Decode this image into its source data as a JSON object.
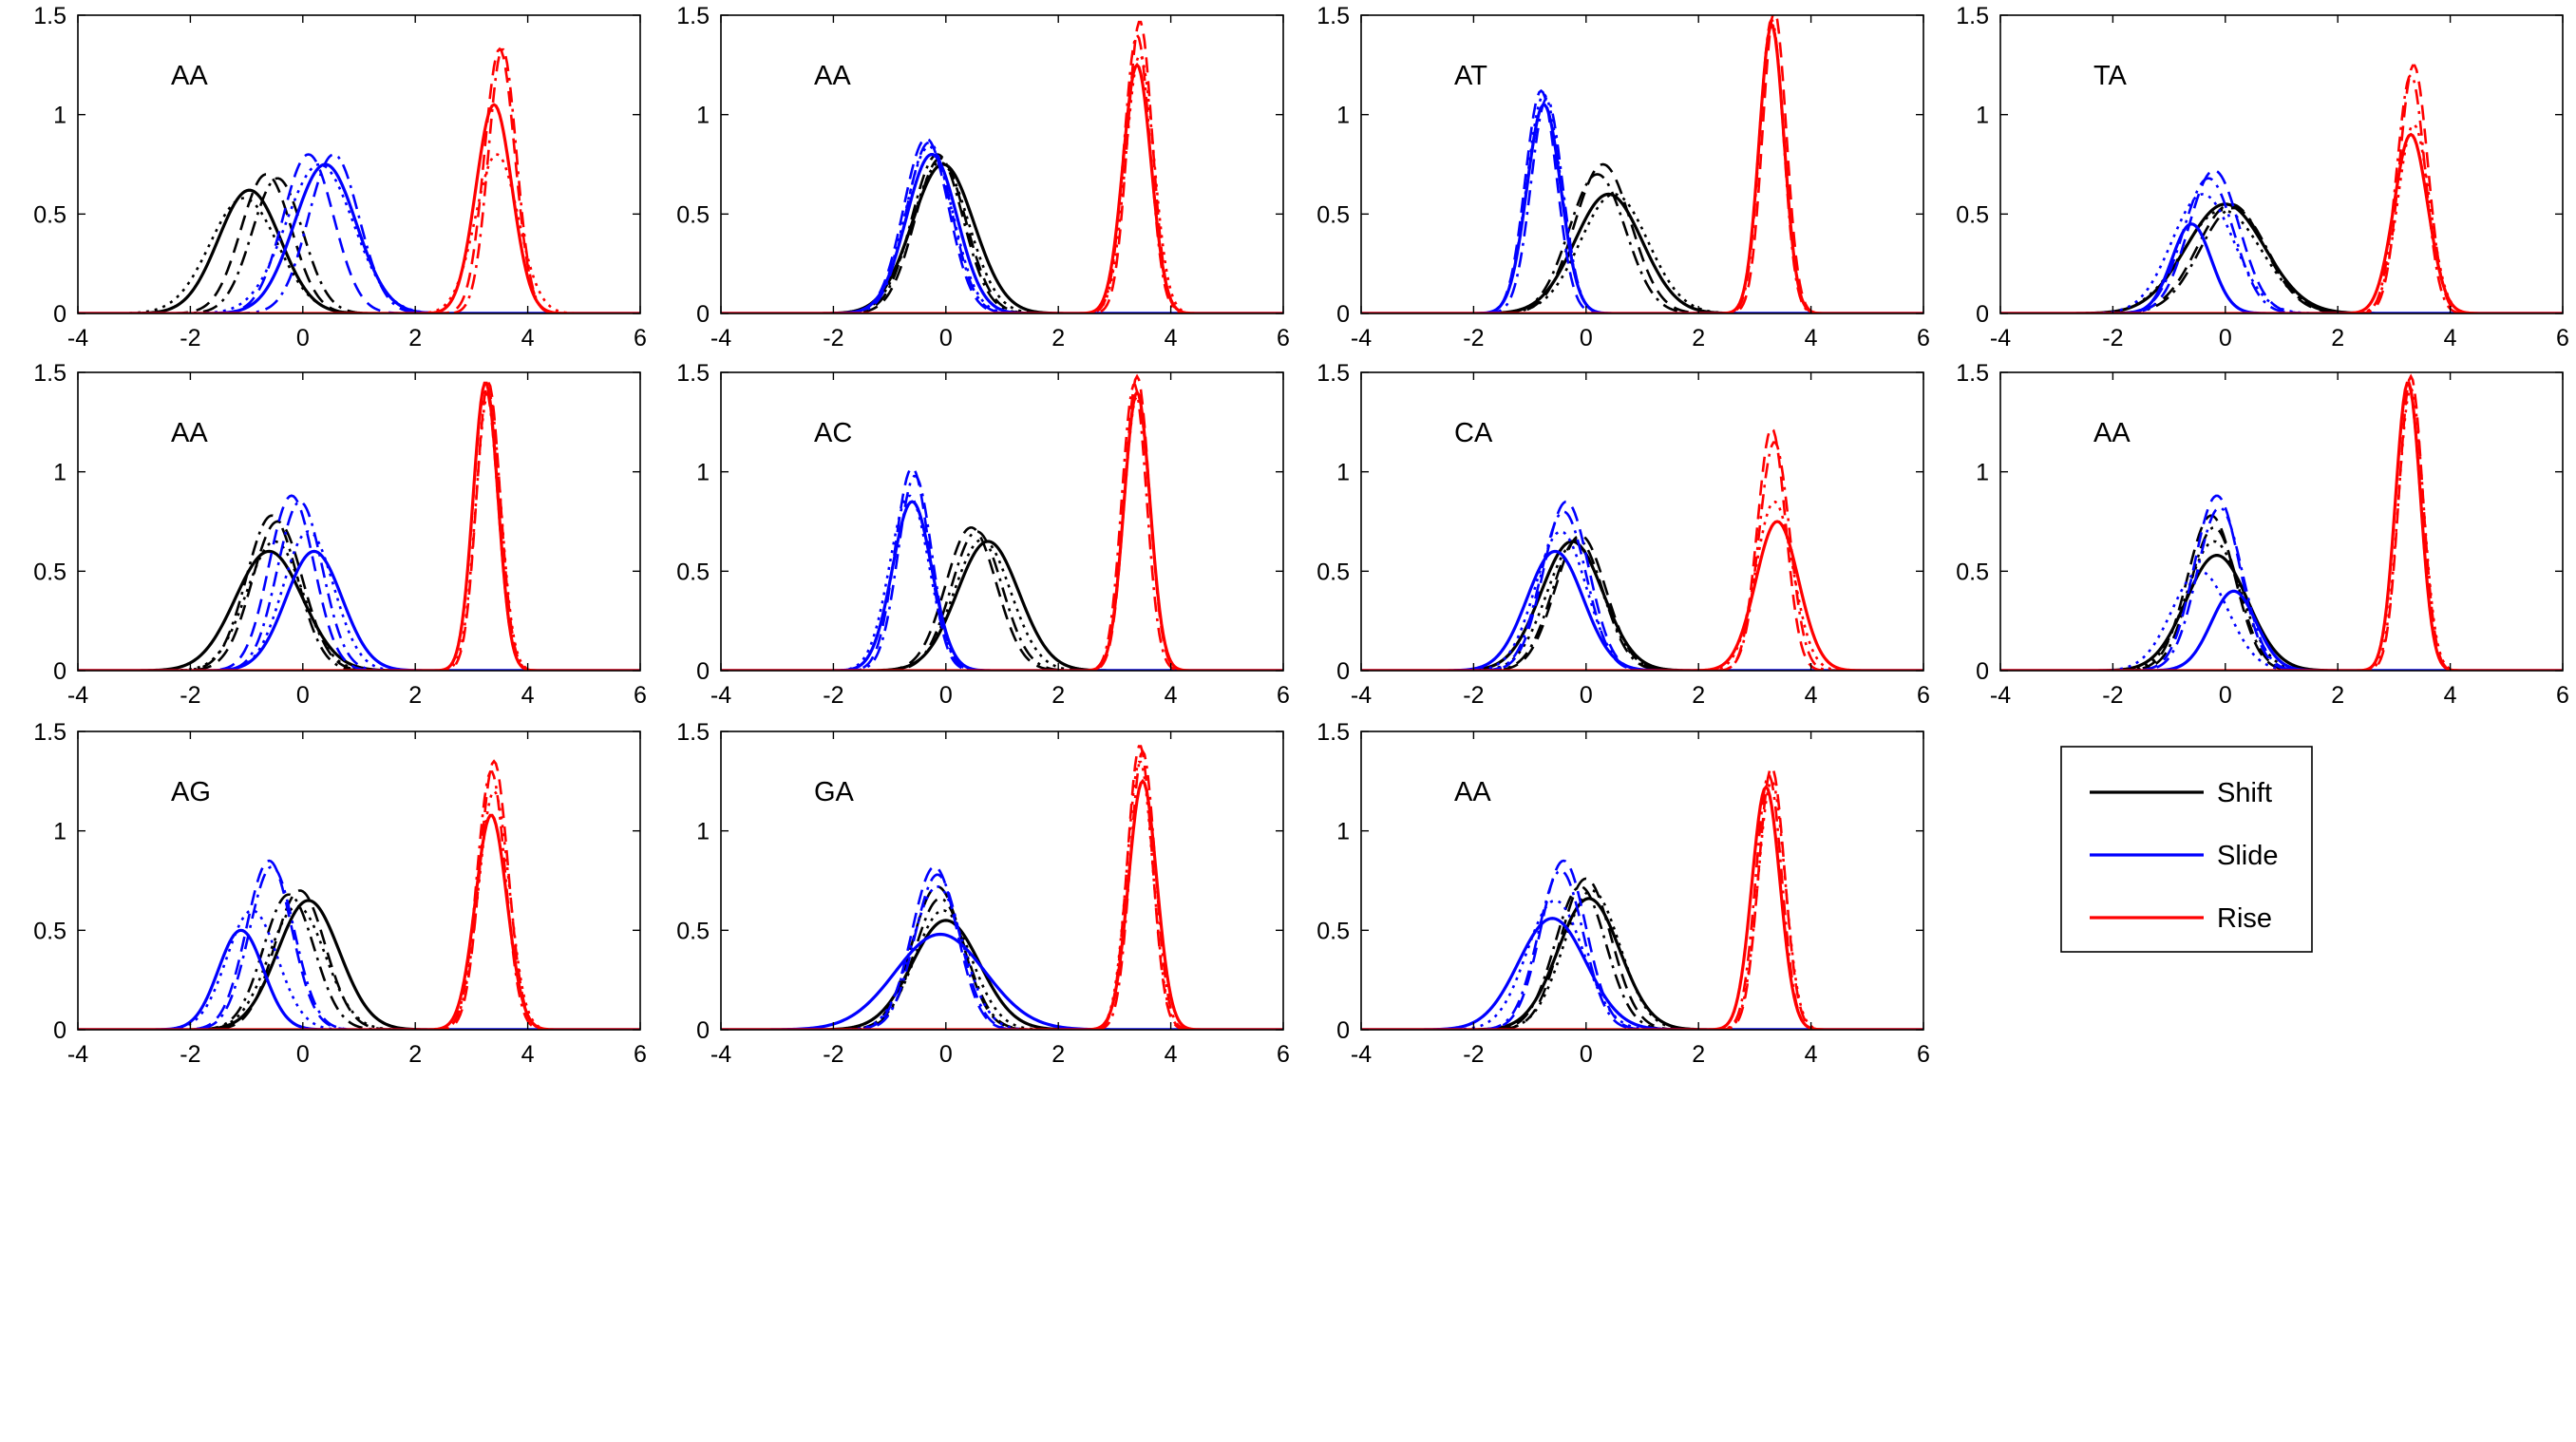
{
  "chart_data": {
    "type": "line",
    "description_of_layout": "grid-4x3",
    "xlim": [
      -4,
      6
    ],
    "ylim": [
      0,
      1.5
    ],
    "x_ticks": [
      -4,
      -2,
      0,
      2,
      4,
      6
    ],
    "y_ticks": [
      0,
      0.5,
      1,
      1.5
    ],
    "x_tick_labels": [
      "-4",
      "-2",
      "0",
      "2",
      "4",
      "6"
    ],
    "y_tick_labels": [
      "0",
      "0.5",
      "1",
      "1.5"
    ],
    "grid": false,
    "colors": {
      "Shift": "#000000",
      "Slide": "#0000ff",
      "Rise": "#ff0000"
    },
    "variant_line_styles": [
      "solid",
      "dashed",
      "dashdot",
      "dotted"
    ],
    "legend": {
      "placement": "grid-row-3-col-4",
      "entries": [
        {
          "name": "Shift",
          "color": "#000000"
        },
        {
          "name": "Slide",
          "color": "#0000ff"
        },
        {
          "name": "Rise",
          "color": "#ff0000"
        }
      ]
    },
    "panels": [
      {
        "label": "AA",
        "row": 0,
        "col": 0,
        "series": [
          {
            "name": "Shift",
            "peaks": [
              [
                -0.95,
                0.62,
                0.55
              ],
              [
                -0.65,
                0.7,
                0.45
              ],
              [
                -0.45,
                0.68,
                0.45
              ],
              [
                -1.05,
                0.58,
                0.6
              ]
            ]
          },
          {
            "name": "Slide",
            "peaks": [
              [
                0.4,
                0.75,
                0.55
              ],
              [
                0.1,
                0.8,
                0.45
              ],
              [
                0.55,
                0.8,
                0.45
              ],
              [
                0.3,
                0.75,
                0.6
              ]
            ]
          },
          {
            "name": "Rise",
            "peaks": [
              [
                3.4,
                1.05,
                0.32
              ],
              [
                3.5,
                1.33,
                0.27
              ],
              [
                3.55,
                1.33,
                0.25
              ],
              [
                3.45,
                0.8,
                0.38
              ]
            ]
          }
        ]
      },
      {
        "label": "AA",
        "row": 0,
        "col": 1,
        "series": [
          {
            "name": "Shift",
            "peaks": [
              [
                -0.05,
                0.75,
                0.55
              ],
              [
                -0.1,
                0.78,
                0.45
              ],
              [
                -0.15,
                0.8,
                0.45
              ],
              [
                -0.1,
                0.76,
                0.5
              ]
            ]
          },
          {
            "name": "Slide",
            "peaks": [
              [
                -0.25,
                0.8,
                0.45
              ],
              [
                -0.35,
                0.88,
                0.4
              ],
              [
                -0.3,
                0.86,
                0.4
              ],
              [
                -0.3,
                0.84,
                0.42
              ]
            ]
          },
          {
            "name": "Rise",
            "peaks": [
              [
                3.4,
                1.25,
                0.25
              ],
              [
                3.45,
                1.47,
                0.22
              ],
              [
                3.4,
                1.4,
                0.23
              ],
              [
                3.45,
                1.3,
                0.25
              ]
            ]
          }
        ]
      },
      {
        "label": "AT",
        "row": 0,
        "col": 2,
        "series": [
          {
            "name": "Shift",
            "peaks": [
              [
                0.4,
                0.6,
                0.6
              ],
              [
                0.3,
                0.75,
                0.5
              ],
              [
                0.2,
                0.7,
                0.5
              ],
              [
                0.5,
                0.6,
                0.6
              ]
            ]
          },
          {
            "name": "Slide",
            "peaks": [
              [
                -0.75,
                1.05,
                0.3
              ],
              [
                -0.8,
                1.12,
                0.28
              ],
              [
                -0.7,
                1.08,
                0.28
              ],
              [
                -0.75,
                1.1,
                0.3
              ]
            ]
          },
          {
            "name": "Rise",
            "peaks": [
              [
                3.3,
                1.45,
                0.22
              ],
              [
                3.35,
                1.52,
                0.21
              ],
              [
                3.3,
                1.48,
                0.21
              ],
              [
                3.3,
                1.46,
                0.22
              ]
            ]
          }
        ]
      },
      {
        "label": "TA",
        "row": 0,
        "col": 3,
        "series": [
          {
            "name": "Shift",
            "peaks": [
              [
                0.0,
                0.55,
                0.7
              ],
              [
                0.1,
                0.55,
                0.6
              ],
              [
                0.15,
                0.53,
                0.6
              ],
              [
                -0.05,
                0.52,
                0.7
              ]
            ]
          },
          {
            "name": "Slide",
            "peaks": [
              [
                -0.6,
                0.45,
                0.35
              ],
              [
                -0.2,
                0.72,
                0.45
              ],
              [
                -0.3,
                0.68,
                0.45
              ],
              [
                -0.4,
                0.6,
                0.55
              ]
            ]
          },
          {
            "name": "Rise",
            "peaks": [
              [
                3.3,
                0.9,
                0.3
              ],
              [
                3.35,
                1.25,
                0.25
              ],
              [
                3.3,
                1.2,
                0.25
              ],
              [
                3.35,
                0.95,
                0.28
              ]
            ]
          }
        ]
      },
      {
        "label": "AA",
        "row": 1,
        "col": 0,
        "series": [
          {
            "name": "Shift",
            "peaks": [
              [
                -0.6,
                0.6,
                0.6
              ],
              [
                -0.45,
                0.75,
                0.45
              ],
              [
                -0.55,
                0.78,
                0.45
              ],
              [
                -0.5,
                0.65,
                0.5
              ]
            ]
          },
          {
            "name": "Slide",
            "peaks": [
              [
                0.2,
                0.6,
                0.5
              ],
              [
                -0.2,
                0.88,
                0.4
              ],
              [
                -0.05,
                0.85,
                0.4
              ],
              [
                0.1,
                0.7,
                0.45
              ]
            ]
          },
          {
            "name": "Rise",
            "peaks": [
              [
                3.25,
                1.45,
                0.22
              ],
              [
                3.3,
                1.45,
                0.21
              ],
              [
                3.25,
                1.42,
                0.22
              ],
              [
                3.3,
                1.4,
                0.22
              ]
            ]
          }
        ]
      },
      {
        "label": "AC",
        "row": 1,
        "col": 1,
        "series": [
          {
            "name": "Shift",
            "peaks": [
              [
                0.75,
                0.65,
                0.55
              ],
              [
                0.45,
                0.72,
                0.45
              ],
              [
                0.55,
                0.7,
                0.45
              ],
              [
                0.65,
                0.66,
                0.5
              ]
            ]
          },
          {
            "name": "Slide",
            "peaks": [
              [
                -0.6,
                0.85,
                0.35
              ],
              [
                -0.6,
                1.02,
                0.3
              ],
              [
                -0.55,
                0.98,
                0.3
              ],
              [
                -0.65,
                0.88,
                0.35
              ]
            ]
          },
          {
            "name": "Rise",
            "peaks": [
              [
                3.4,
                1.4,
                0.23
              ],
              [
                3.4,
                1.48,
                0.22
              ],
              [
                3.35,
                1.44,
                0.22
              ],
              [
                3.4,
                1.38,
                0.23
              ]
            ]
          }
        ]
      },
      {
        "label": "CA",
        "row": 1,
        "col": 2,
        "series": [
          {
            "name": "Shift",
            "peaks": [
              [
                -0.25,
                0.65,
                0.55
              ],
              [
                -0.1,
                0.68,
                0.45
              ],
              [
                -0.15,
                0.66,
                0.45
              ],
              [
                -0.2,
                0.64,
                0.5
              ]
            ]
          },
          {
            "name": "Slide",
            "peaks": [
              [
                -0.55,
                0.6,
                0.5
              ],
              [
                -0.35,
                0.85,
                0.4
              ],
              [
                -0.4,
                0.8,
                0.4
              ],
              [
                -0.45,
                0.7,
                0.45
              ]
            ]
          },
          {
            "name": "Rise",
            "peaks": [
              [
                3.4,
                0.75,
                0.38
              ],
              [
                3.3,
                1.22,
                0.25
              ],
              [
                3.35,
                1.15,
                0.27
              ],
              [
                3.35,
                0.85,
                0.33
              ]
            ]
          }
        ]
      },
      {
        "label": "AA",
        "row": 1,
        "col": 3,
        "series": [
          {
            "name": "Shift",
            "peaks": [
              [
                -0.15,
                0.58,
                0.55
              ],
              [
                -0.25,
                0.78,
                0.42
              ],
              [
                -0.2,
                0.72,
                0.42
              ],
              [
                -0.2,
                0.65,
                0.48
              ]
            ]
          },
          {
            "name": "Slide",
            "peaks": [
              [
                0.15,
                0.4,
                0.4
              ],
              [
                -0.15,
                0.88,
                0.4
              ],
              [
                -0.1,
                0.82,
                0.4
              ],
              [
                -0.45,
                0.5,
                0.5
              ]
            ]
          },
          {
            "name": "Rise",
            "peaks": [
              [
                3.25,
                1.45,
                0.22
              ],
              [
                3.3,
                1.48,
                0.21
              ],
              [
                3.25,
                1.44,
                0.22
              ],
              [
                3.3,
                1.42,
                0.22
              ]
            ]
          }
        ]
      },
      {
        "label": "AG",
        "row": 2,
        "col": 0,
        "series": [
          {
            "name": "Shift",
            "peaks": [
              [
                0.1,
                0.65,
                0.55
              ],
              [
                -0.05,
                0.7,
                0.45
              ],
              [
                -0.25,
                0.68,
                0.45
              ],
              [
                -0.1,
                0.62,
                0.5
              ]
            ]
          },
          {
            "name": "Slide",
            "peaks": [
              [
                -1.1,
                0.5,
                0.4
              ],
              [
                -0.6,
                0.85,
                0.4
              ],
              [
                -0.55,
                0.82,
                0.4
              ],
              [
                -0.9,
                0.6,
                0.45
              ]
            ]
          },
          {
            "name": "Rise",
            "peaks": [
              [
                3.35,
                1.08,
                0.28
              ],
              [
                3.4,
                1.35,
                0.25
              ],
              [
                3.35,
                1.3,
                0.25
              ],
              [
                3.4,
                1.2,
                0.27
              ]
            ]
          }
        ]
      },
      {
        "label": "GA",
        "row": 2,
        "col": 1,
        "series": [
          {
            "name": "Shift",
            "peaks": [
              [
                0.0,
                0.55,
                0.6
              ],
              [
                -0.15,
                0.72,
                0.45
              ],
              [
                -0.1,
                0.66,
                0.45
              ],
              [
                -0.05,
                0.6,
                0.5
              ]
            ]
          },
          {
            "name": "Slide",
            "peaks": [
              [
                -0.1,
                0.48,
                0.8
              ],
              [
                -0.2,
                0.82,
                0.4
              ],
              [
                -0.15,
                0.78,
                0.4
              ],
              [
                -0.15,
                0.72,
                0.45
              ]
            ]
          },
          {
            "name": "Rise",
            "peaks": [
              [
                3.5,
                1.25,
                0.25
              ],
              [
                3.45,
                1.43,
                0.22
              ],
              [
                3.5,
                1.4,
                0.22
              ],
              [
                3.45,
                1.35,
                0.23
              ]
            ]
          }
        ]
      },
      {
        "label": "AA",
        "row": 2,
        "col": 2,
        "series": [
          {
            "name": "Shift",
            "peaks": [
              [
                0.05,
                0.66,
                0.55
              ],
              [
                0.0,
                0.76,
                0.45
              ],
              [
                -0.1,
                0.72,
                0.45
              ],
              [
                0.1,
                0.7,
                0.5
              ]
            ]
          },
          {
            "name": "Slide",
            "peaks": [
              [
                -0.6,
                0.56,
                0.6
              ],
              [
                -0.4,
                0.85,
                0.4
              ],
              [
                -0.45,
                0.8,
                0.4
              ],
              [
                -0.55,
                0.65,
                0.5
              ]
            ]
          },
          {
            "name": "Rise",
            "peaks": [
              [
                3.2,
                1.22,
                0.25
              ],
              [
                3.3,
                1.32,
                0.23
              ],
              [
                3.25,
                1.28,
                0.23
              ],
              [
                3.3,
                1.25,
                0.24
              ]
            ]
          }
        ]
      }
    ]
  }
}
